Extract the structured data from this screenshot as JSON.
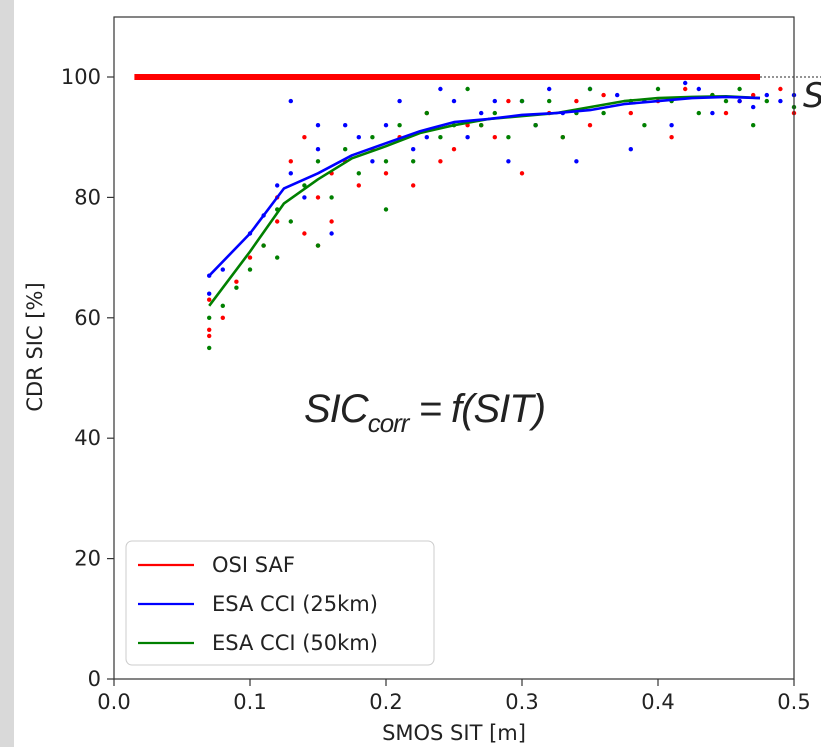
{
  "chart_data": {
    "type": "scatter",
    "xlabel": "SMOS SIT [m]",
    "ylabel": "CDR SIC [%]",
    "xlim": [
      0.0,
      0.5
    ],
    "ylim": [
      0,
      110
    ],
    "x_ticks": [
      "0.0",
      "0.1",
      "0.2",
      "0.3",
      "0.4",
      "0.5"
    ],
    "y_ticks": [
      "0",
      "20",
      "40",
      "60",
      "80",
      "100"
    ],
    "x_tick_values": [
      0.0,
      0.1,
      0.2,
      0.3,
      0.4,
      0.5
    ],
    "y_tick_values": [
      0,
      20,
      40,
      60,
      80,
      100
    ],
    "grid": false,
    "legend_position": "bottom-left",
    "annotation": {
      "main": "SIC",
      "subscript": "corr",
      "suffix": " = f(SIT)"
    },
    "edge_label": "S",
    "series": [
      {
        "name": "OSI SAF",
        "color": "#ff0000",
        "line": {
          "x": [
            0.015,
            0.475
          ],
          "y": [
            100,
            100
          ]
        },
        "points": [
          [
            0.07,
            58
          ],
          [
            0.07,
            57
          ],
          [
            0.07,
            63
          ],
          [
            0.08,
            60
          ],
          [
            0.09,
            66
          ],
          [
            0.1,
            70
          ],
          [
            0.11,
            72
          ],
          [
            0.12,
            76
          ],
          [
            0.12,
            80
          ],
          [
            0.13,
            86
          ],
          [
            0.14,
            74
          ],
          [
            0.14,
            90
          ],
          [
            0.15,
            80
          ],
          [
            0.15,
            72
          ],
          [
            0.16,
            76
          ],
          [
            0.16,
            84
          ],
          [
            0.17,
            86
          ],
          [
            0.18,
            82
          ],
          [
            0.19,
            88
          ],
          [
            0.2,
            84
          ],
          [
            0.21,
            90
          ],
          [
            0.22,
            82
          ],
          [
            0.23,
            94
          ],
          [
            0.24,
            86
          ],
          [
            0.25,
            88
          ],
          [
            0.26,
            92
          ],
          [
            0.27,
            92
          ],
          [
            0.28,
            90
          ],
          [
            0.29,
            96
          ],
          [
            0.3,
            84
          ],
          [
            0.31,
            92
          ],
          [
            0.32,
            94
          ],
          [
            0.33,
            90
          ],
          [
            0.34,
            96
          ],
          [
            0.35,
            92
          ],
          [
            0.36,
            97
          ],
          [
            0.38,
            94
          ],
          [
            0.4,
            96
          ],
          [
            0.41,
            90
          ],
          [
            0.42,
            98
          ],
          [
            0.44,
            97
          ],
          [
            0.45,
            94
          ],
          [
            0.46,
            96
          ],
          [
            0.47,
            97
          ],
          [
            0.49,
            98
          ],
          [
            0.5,
            94
          ]
        ]
      },
      {
        "name": "ESA CCI (25km)",
        "color": "#0000ff",
        "line": {
          "x": [
            0.07,
            0.1,
            0.125,
            0.15,
            0.175,
            0.2,
            0.225,
            0.25,
            0.275,
            0.3,
            0.325,
            0.35,
            0.375,
            0.4,
            0.425,
            0.45,
            0.475
          ],
          "y": [
            67,
            74,
            81.5,
            84,
            87,
            89,
            91,
            92.5,
            93,
            93.7,
            94,
            94.5,
            95.5,
            96,
            96.5,
            96.7,
            96.5
          ]
        },
        "points": [
          [
            0.07,
            67
          ],
          [
            0.07,
            64
          ],
          [
            0.08,
            68
          ],
          [
            0.1,
            74
          ],
          [
            0.11,
            77
          ],
          [
            0.12,
            82
          ],
          [
            0.13,
            96
          ],
          [
            0.13,
            84
          ],
          [
            0.14,
            80
          ],
          [
            0.15,
            92
          ],
          [
            0.15,
            88
          ],
          [
            0.16,
            74
          ],
          [
            0.17,
            92
          ],
          [
            0.18,
            90
          ],
          [
            0.19,
            86
          ],
          [
            0.2,
            92
          ],
          [
            0.21,
            96
          ],
          [
            0.22,
            88
          ],
          [
            0.23,
            90
          ],
          [
            0.24,
            98
          ],
          [
            0.25,
            96
          ],
          [
            0.26,
            90
          ],
          [
            0.27,
            94
          ],
          [
            0.28,
            96
          ],
          [
            0.29,
            86
          ],
          [
            0.3,
            96
          ],
          [
            0.31,
            92
          ],
          [
            0.32,
            98
          ],
          [
            0.33,
            94
          ],
          [
            0.34,
            86
          ],
          [
            0.35,
            98
          ],
          [
            0.37,
            97
          ],
          [
            0.38,
            88
          ],
          [
            0.39,
            96
          ],
          [
            0.4,
            100
          ],
          [
            0.41,
            92
          ],
          [
            0.42,
            99
          ],
          [
            0.43,
            98
          ],
          [
            0.44,
            94
          ],
          [
            0.46,
            96
          ],
          [
            0.47,
            95
          ],
          [
            0.48,
            97
          ],
          [
            0.49,
            96
          ],
          [
            0.5,
            97
          ]
        ]
      },
      {
        "name": "ESA CCI (50km)",
        "color": "#008000",
        "line": {
          "x": [
            0.07,
            0.1,
            0.125,
            0.15,
            0.175,
            0.2,
            0.225,
            0.25,
            0.275,
            0.3,
            0.325,
            0.35,
            0.375,
            0.4,
            0.425,
            0.45,
            0.475
          ],
          "y": [
            62,
            71,
            79,
            83,
            86.5,
            88.5,
            90.7,
            92,
            93,
            93.5,
            94,
            95,
            96,
            96.5,
            96.7,
            96.8,
            96.5
          ]
        },
        "points": [
          [
            0.07,
            55
          ],
          [
            0.07,
            60
          ],
          [
            0.08,
            62
          ],
          [
            0.09,
            65
          ],
          [
            0.1,
            68
          ],
          [
            0.11,
            72
          ],
          [
            0.12,
            70
          ],
          [
            0.12,
            78
          ],
          [
            0.13,
            76
          ],
          [
            0.14,
            82
          ],
          [
            0.15,
            72
          ],
          [
            0.15,
            86
          ],
          [
            0.16,
            80
          ],
          [
            0.17,
            88
          ],
          [
            0.18,
            84
          ],
          [
            0.19,
            90
          ],
          [
            0.2,
            78
          ],
          [
            0.2,
            86
          ],
          [
            0.21,
            92
          ],
          [
            0.22,
            86
          ],
          [
            0.23,
            94
          ],
          [
            0.24,
            90
          ],
          [
            0.25,
            92
          ],
          [
            0.26,
            98
          ],
          [
            0.27,
            92
          ],
          [
            0.28,
            94
          ],
          [
            0.29,
            90
          ],
          [
            0.3,
            96
          ],
          [
            0.31,
            92
          ],
          [
            0.32,
            96
          ],
          [
            0.33,
            90
          ],
          [
            0.34,
            94
          ],
          [
            0.35,
            98
          ],
          [
            0.36,
            94
          ],
          [
            0.38,
            96
          ],
          [
            0.39,
            92
          ],
          [
            0.4,
            98
          ],
          [
            0.41,
            96
          ],
          [
            0.42,
            100
          ],
          [
            0.43,
            94
          ],
          [
            0.44,
            97
          ],
          [
            0.45,
            96
          ],
          [
            0.46,
            98
          ],
          [
            0.47,
            92
          ],
          [
            0.48,
            96
          ],
          [
            0.5,
            95
          ]
        ]
      }
    ]
  }
}
